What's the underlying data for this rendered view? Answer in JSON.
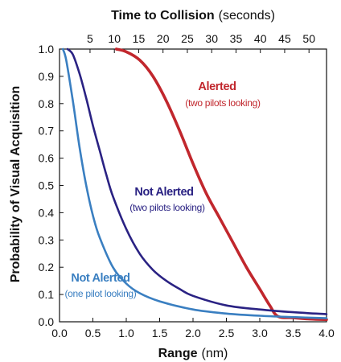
{
  "chart_data": {
    "type": "line",
    "x_axis": {
      "label_bold": "Range",
      "label_unit": "(nm)",
      "range": [
        0,
        4.0
      ],
      "ticks": [
        0.0,
        0.5,
        1.0,
        1.5,
        2.0,
        2.5,
        3.0,
        3.5,
        4.0
      ],
      "tick_labels": [
        "0.0",
        "0.5",
        "1.0",
        "1.5",
        "2.0",
        "2.5",
        "3.0",
        "3.5",
        "4.0"
      ]
    },
    "top_axis": {
      "label_bold": "Time to Collision",
      "label_unit": "(seconds)",
      "ticks": [
        5,
        10,
        15,
        20,
        25,
        30,
        35,
        40,
        45,
        50
      ],
      "tick_labels": [
        "5",
        "10",
        "15",
        "20",
        "25",
        "30",
        "35",
        "40",
        "45",
        "50"
      ]
    },
    "y_axis": {
      "label": "Probability of Visual Acquisition",
      "range": [
        0,
        1.0
      ],
      "ticks": [
        0.0,
        0.1,
        0.2,
        0.3,
        0.4,
        0.5,
        0.6,
        0.7,
        0.8,
        0.9,
        1.0
      ],
      "tick_labels": [
        "0.0",
        "0.1",
        "0.2",
        "0.3",
        "0.4",
        "0.5",
        "0.6",
        "0.7",
        "0.8",
        "0.9",
        "1.0"
      ]
    },
    "grid": false,
    "series": [
      {
        "name": "Alerted",
        "subtitle": "(two pilots looking)",
        "color": "#c1272d",
        "x": [
          0.85,
          1.0,
          1.2,
          1.4,
          1.6,
          1.8,
          2.0,
          2.2,
          2.4,
          2.6,
          2.8,
          3.0,
          3.15,
          3.27,
          3.5,
          3.75,
          4.0
        ],
        "y": [
          1.0,
          0.99,
          0.96,
          0.9,
          0.81,
          0.7,
          0.58,
          0.47,
          0.38,
          0.29,
          0.2,
          0.12,
          0.06,
          0.02,
          0.015,
          0.01,
          0.008
        ]
      },
      {
        "name": "Not Alerted",
        "subtitle": "(two pilots looking)",
        "color": "#2a2283",
        "x": [
          0.12,
          0.2,
          0.3,
          0.4,
          0.5,
          0.6,
          0.7,
          0.8,
          1.0,
          1.2,
          1.4,
          1.6,
          1.8,
          2.0,
          2.5,
          3.0,
          3.5,
          4.0
        ],
        "y": [
          1.0,
          0.98,
          0.91,
          0.82,
          0.72,
          0.63,
          0.54,
          0.46,
          0.34,
          0.25,
          0.19,
          0.15,
          0.12,
          0.095,
          0.06,
          0.045,
          0.035,
          0.028
        ]
      },
      {
        "name": "Not Alerted",
        "subtitle": "(one pilot looking)",
        "color": "#3a7fc1",
        "x": [
          0.05,
          0.1,
          0.2,
          0.3,
          0.4,
          0.5,
          0.6,
          0.8,
          1.0,
          1.2,
          1.5,
          2.0,
          2.5,
          3.0,
          3.5,
          4.0
        ],
        "y": [
          1.0,
          0.96,
          0.81,
          0.64,
          0.5,
          0.39,
          0.31,
          0.2,
          0.14,
          0.105,
          0.075,
          0.045,
          0.03,
          0.022,
          0.017,
          0.013
        ]
      }
    ]
  }
}
